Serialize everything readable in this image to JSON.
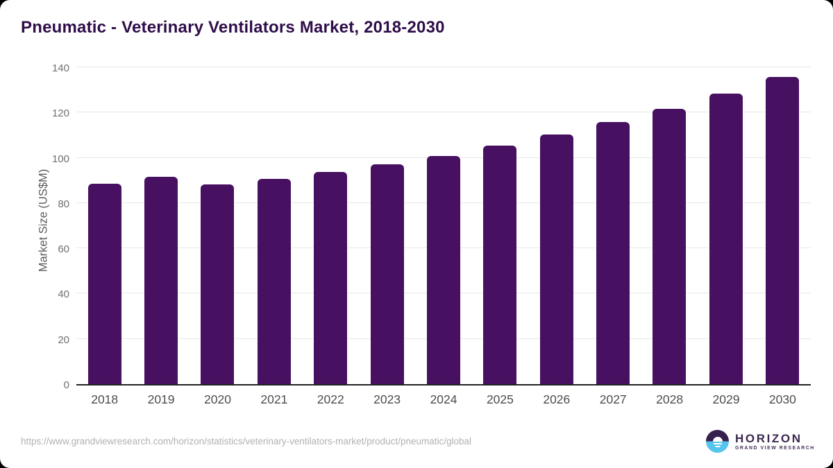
{
  "header": {
    "title": "Pneumatic - Veterinary Ventilators Market, 2018-2030"
  },
  "chart_data": {
    "type": "bar",
    "title": "Pneumatic - Veterinary Ventilators Market, 2018-2030",
    "xlabel": "",
    "ylabel": "Market Size (US$M)",
    "categories": [
      "2018",
      "2019",
      "2020",
      "2021",
      "2022",
      "2023",
      "2024",
      "2025",
      "2026",
      "2027",
      "2028",
      "2029",
      "2030"
    ],
    "values": [
      89.0,
      91.9,
      88.5,
      91.1,
      94.3,
      97.6,
      101.3,
      105.9,
      110.9,
      116.2,
      122.2,
      128.9,
      136.3
    ],
    "ylim": [
      0,
      140
    ],
    "yticks": [
      0,
      20,
      40,
      60,
      80,
      100,
      120,
      140
    ],
    "grid": true,
    "legend_position": "none",
    "bar_color": "#471061"
  },
  "footer": {
    "source_url": "https://www.grandviewresearch.com/horizon/statistics/veterinary-ventilators-market/product/pneumatic/global",
    "logo": {
      "name": "HORIZON",
      "subtitle": "GRAND VIEW RESEARCH"
    }
  },
  "colors": {
    "title_text": "#2e0d49",
    "bar": "#471061",
    "gridline": "#e8e8e8",
    "axis_line": "#222222",
    "y_tick_label": "#6f6f6f",
    "x_tick_label": "#4c4c4c",
    "y_axis_title": "#5a5a5a",
    "source_url_text": "#b1b1b1",
    "logo_purple": "#38204e",
    "logo_blue": "#56c5ee"
  }
}
